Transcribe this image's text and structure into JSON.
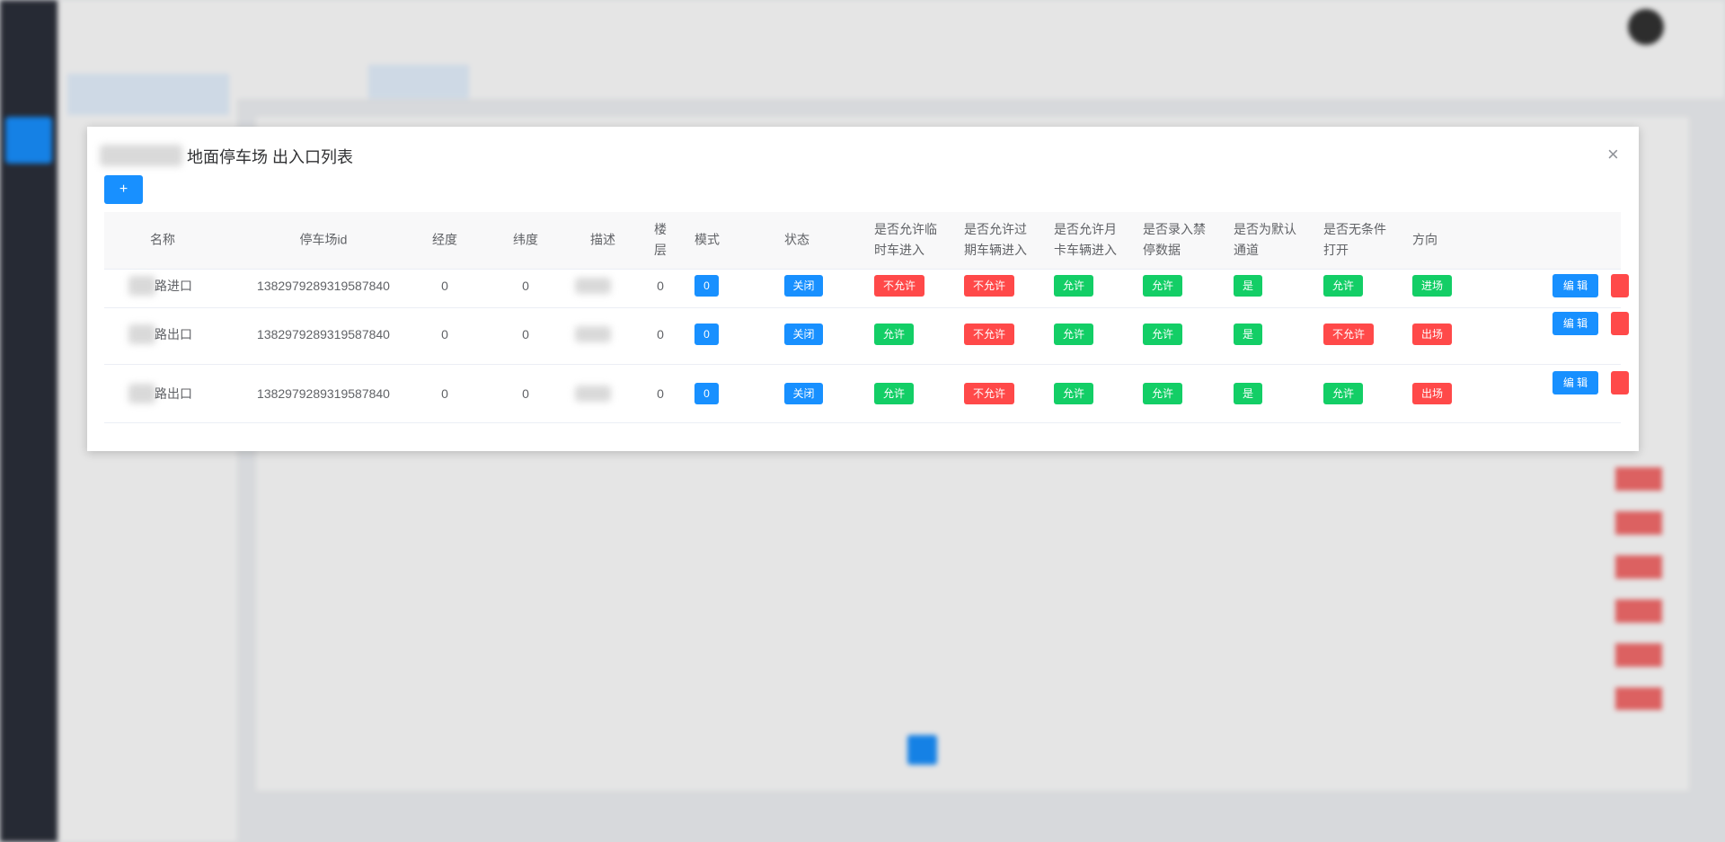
{
  "modal": {
    "title": "地面停车场 出入口列表",
    "add_button": "+",
    "close": "×",
    "table": {
      "headers": [
        "名称",
        "停车场id",
        "经度",
        "纬度",
        "描述",
        "楼层",
        "模式",
        "状态",
        "是否允许临时车进入",
        "是否允许过期车辆进入",
        "是否允许月卡车辆进入",
        "是否录入禁停数据",
        "是否为默认通道",
        "是否无条件打开",
        "方向"
      ],
      "rows": [
        {
          "name": "路进口",
          "parking_id": "1382979289319587840",
          "longitude": "0",
          "latitude": "0",
          "floor": "0",
          "mode": "0",
          "status": "关闭",
          "temp": "不允许",
          "expired": "不允许",
          "monthly": "允许",
          "blacklist": "允许",
          "default": "是",
          "unconditional": "允许",
          "direction": "进场",
          "edit": "编 辑"
        },
        {
          "name": "路出口",
          "parking_id": "1382979289319587840",
          "longitude": "0",
          "latitude": "0",
          "floor": "0",
          "mode": "0",
          "status": "关闭",
          "temp": "允许",
          "expired": "不允许",
          "monthly": "允许",
          "blacklist": "允许",
          "default": "是",
          "unconditional": "不允许",
          "direction": "出场",
          "edit": "编 辑"
        },
        {
          "name": "路出口",
          "parking_id": "1382979289319587840",
          "longitude": "0",
          "latitude": "0",
          "floor": "0",
          "mode": "0",
          "status": "关闭",
          "temp": "允许",
          "expired": "不允许",
          "monthly": "允许",
          "blacklist": "允许",
          "default": "是",
          "unconditional": "允许",
          "direction": "出场",
          "edit": "编 辑"
        }
      ]
    }
  }
}
